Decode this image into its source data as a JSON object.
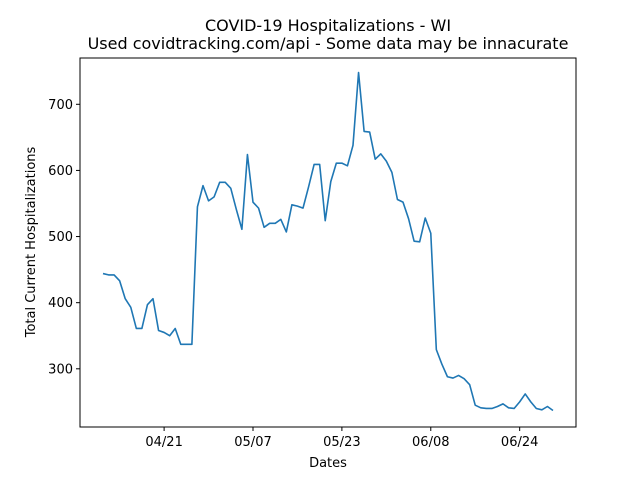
{
  "chart_data": {
    "type": "line",
    "title": "COVID-19 Hospitalizations - WI",
    "subtitle": "Used covidtracking.com/api - Some data may be innacurate",
    "xlabel": "Dates",
    "ylabel": "Total Current Hospitalizations",
    "x_tick_labels": [
      "04/21",
      "05/07",
      "05/23",
      "06/08",
      "06/24"
    ],
    "y_ticks": [
      300,
      400,
      500,
      600,
      700
    ],
    "ylim": [
      212,
      770
    ],
    "grid": false,
    "line_color": "#1f77b4",
    "series": [
      {
        "x": [
          "04/10",
          "04/11",
          "04/12",
          "04/13",
          "04/14",
          "04/15",
          "04/16",
          "04/17",
          "04/18",
          "04/19",
          "04/20",
          "04/21",
          "04/22",
          "04/23",
          "04/24",
          "04/25",
          "04/26",
          "04/27",
          "04/28",
          "04/29",
          "04/30",
          "05/01",
          "05/02",
          "05/03",
          "05/04",
          "05/05",
          "05/06",
          "05/07",
          "05/08",
          "05/09",
          "05/10",
          "05/11",
          "05/12",
          "05/13",
          "05/14",
          "05/15",
          "05/16",
          "05/17",
          "05/18",
          "05/19",
          "05/20",
          "05/21",
          "05/22",
          "05/23",
          "05/24",
          "05/25",
          "05/26",
          "05/27",
          "05/28",
          "05/29",
          "05/30",
          "05/31",
          "06/01",
          "06/02",
          "06/03",
          "06/04",
          "06/05",
          "06/06",
          "06/07",
          "06/08",
          "06/09",
          "06/10",
          "06/11",
          "06/12",
          "06/13",
          "06/14",
          "06/15",
          "06/16",
          "06/17",
          "06/18",
          "06/19",
          "06/20",
          "06/21",
          "06/22",
          "06/23",
          "06/24",
          "06/25",
          "06/26",
          "06/27",
          "06/28",
          "06/29",
          "06/30"
        ],
        "values": [
          444,
          442,
          442,
          433,
          406,
          393,
          361,
          361,
          397,
          406,
          358,
          355,
          350,
          361,
          337,
          337,
          337,
          545,
          577,
          554,
          560,
          582,
          582,
          573,
          541,
          511,
          624,
          552,
          543,
          514,
          520,
          520,
          526,
          507,
          548,
          546,
          543,
          575,
          609,
          609,
          524,
          583,
          611,
          611,
          607,
          638,
          748,
          659,
          658,
          617,
          625,
          614,
          597,
          556,
          552,
          527,
          493,
          492,
          528,
          505,
          329,
          307,
          288,
          286,
          290,
          285,
          276,
          245,
          241,
          240,
          240,
          243,
          247,
          241,
          240,
          250,
          262,
          250,
          240,
          238,
          243,
          237
        ]
      }
    ]
  }
}
